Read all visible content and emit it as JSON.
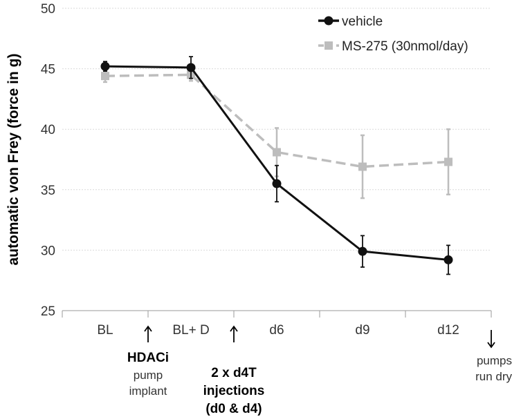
{
  "chart_data": {
    "type": "line",
    "title": "",
    "xlabel": "",
    "ylabel": "automatic von Frey (force in g)",
    "ylim": [
      25,
      50
    ],
    "yticks": [
      "25",
      "30",
      "35",
      "40",
      "45",
      "50"
    ],
    "categories": [
      "BL",
      "BL+ D",
      "d6",
      "d9",
      "d12"
    ],
    "grid": true,
    "legend_position": "top-right",
    "series": [
      {
        "name": "vehicle",
        "color": "#111111",
        "marker": "circle",
        "style": "solid",
        "values": [
          45.2,
          45.1,
          35.5,
          29.9,
          29.2
        ],
        "errors": [
          0.4,
          0.9,
          1.5,
          1.3,
          1.2
        ]
      },
      {
        "name": "MS-275 (30nmol/day)",
        "color": "#bdbdbd",
        "marker": "square",
        "style": "dashed",
        "values": [
          44.4,
          44.5,
          38.1,
          36.9,
          37.3
        ],
        "errors": [
          0.5,
          0.5,
          2.0,
          2.6,
          2.7
        ]
      }
    ],
    "annotations": [
      {
        "id": "hdaci",
        "arrow": "up",
        "after_category": 0,
        "lines": [
          {
            "text": "HDACi",
            "bold": true
          },
          {
            "text": "pump",
            "bold": false
          },
          {
            "text": "implant",
            "bold": false
          }
        ]
      },
      {
        "id": "d4t",
        "arrow": "up",
        "after_category": 1,
        "lines": [
          {
            "text": "2 x d4T",
            "bold": true
          },
          {
            "text": "injections",
            "bold": true
          },
          {
            "text": "(d0 & d4)",
            "bold": true
          }
        ]
      },
      {
        "id": "pumps",
        "arrow": "down",
        "after_category": 4,
        "lines": [
          {
            "text": "pumps",
            "bold": false
          },
          {
            "text": "run dry",
            "bold": false
          }
        ]
      }
    ]
  }
}
